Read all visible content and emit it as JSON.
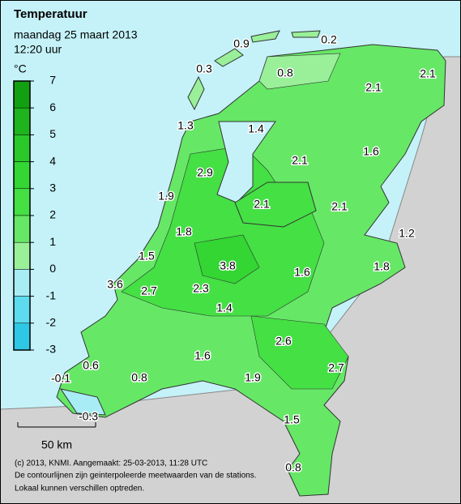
{
  "header": {
    "title": "Temperatuur",
    "date": "maandag 25 maart 2013",
    "time": "12:20 uur"
  },
  "legend": {
    "unit": "°C",
    "ticks": [
      7,
      6,
      5,
      4,
      3,
      2,
      1,
      0,
      -1,
      -2,
      -3
    ],
    "colors": [
      "#12a012",
      "#1eb41e",
      "#2ac82a",
      "#33d633",
      "#44e044",
      "#66e866",
      "#99f099",
      "#a8ecf6",
      "#5cdcee",
      "#2ec8e6"
    ]
  },
  "stations": [
    0.9,
    0.2,
    0.3,
    0.8,
    2.1,
    2.1,
    1.3,
    1.4,
    2.1,
    1.6,
    2.9,
    1.9,
    2.1,
    2.1,
    1.8,
    1.2,
    1.5,
    3.8,
    1.6,
    1.8,
    3.6,
    2.7,
    2.3,
    1.4,
    2.6,
    1.6,
    2.7,
    0.6,
    -0.1,
    0.8,
    1.9,
    1.5,
    -0.3,
    0.8
  ],
  "scale": "50 km",
  "footer": [
    "(c) 2013, KNMI. Aangemaakt: 25-03-2013, 11:28 UTC",
    "De contourlijnen zijn geinterpoleerde meetwaarden van de stations.",
    "Lokaal kunnen verschillen optreden."
  ]
}
